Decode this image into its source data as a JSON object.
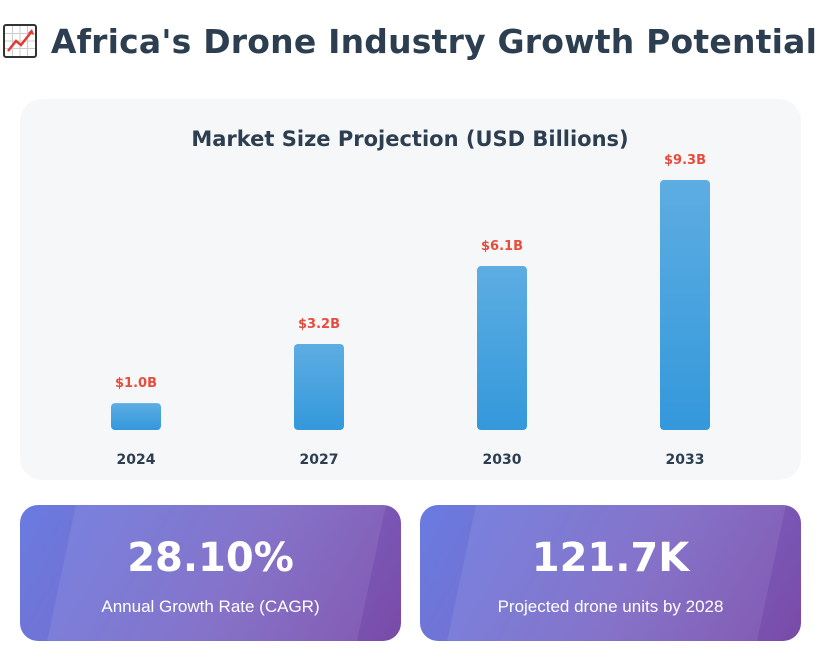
{
  "header": {
    "icon": "chart-increasing-icon",
    "title": "Africa's Drone Industry Growth Potential"
  },
  "chart_data": {
    "type": "bar",
    "title": "Market Size Projection (USD Billions)",
    "categories": [
      "2024",
      "2027",
      "2030",
      "2033"
    ],
    "values": [
      1.0,
      3.2,
      6.1,
      9.3
    ],
    "value_labels": [
      "$1.0B",
      "$3.2B",
      "$6.1B",
      "$9.3B"
    ],
    "xlabel": "",
    "ylabel": "",
    "grid": false,
    "colors": {
      "bar_top": "#5dade2",
      "bar_bottom": "#3498db",
      "value_label": "#e74c3c",
      "tick_label": "#2c3e50"
    }
  },
  "stats": [
    {
      "value": "28.10%",
      "label": "Annual Growth Rate (CAGR)"
    },
    {
      "value": "121.7K",
      "label": "Projected drone units by 2028"
    }
  ]
}
